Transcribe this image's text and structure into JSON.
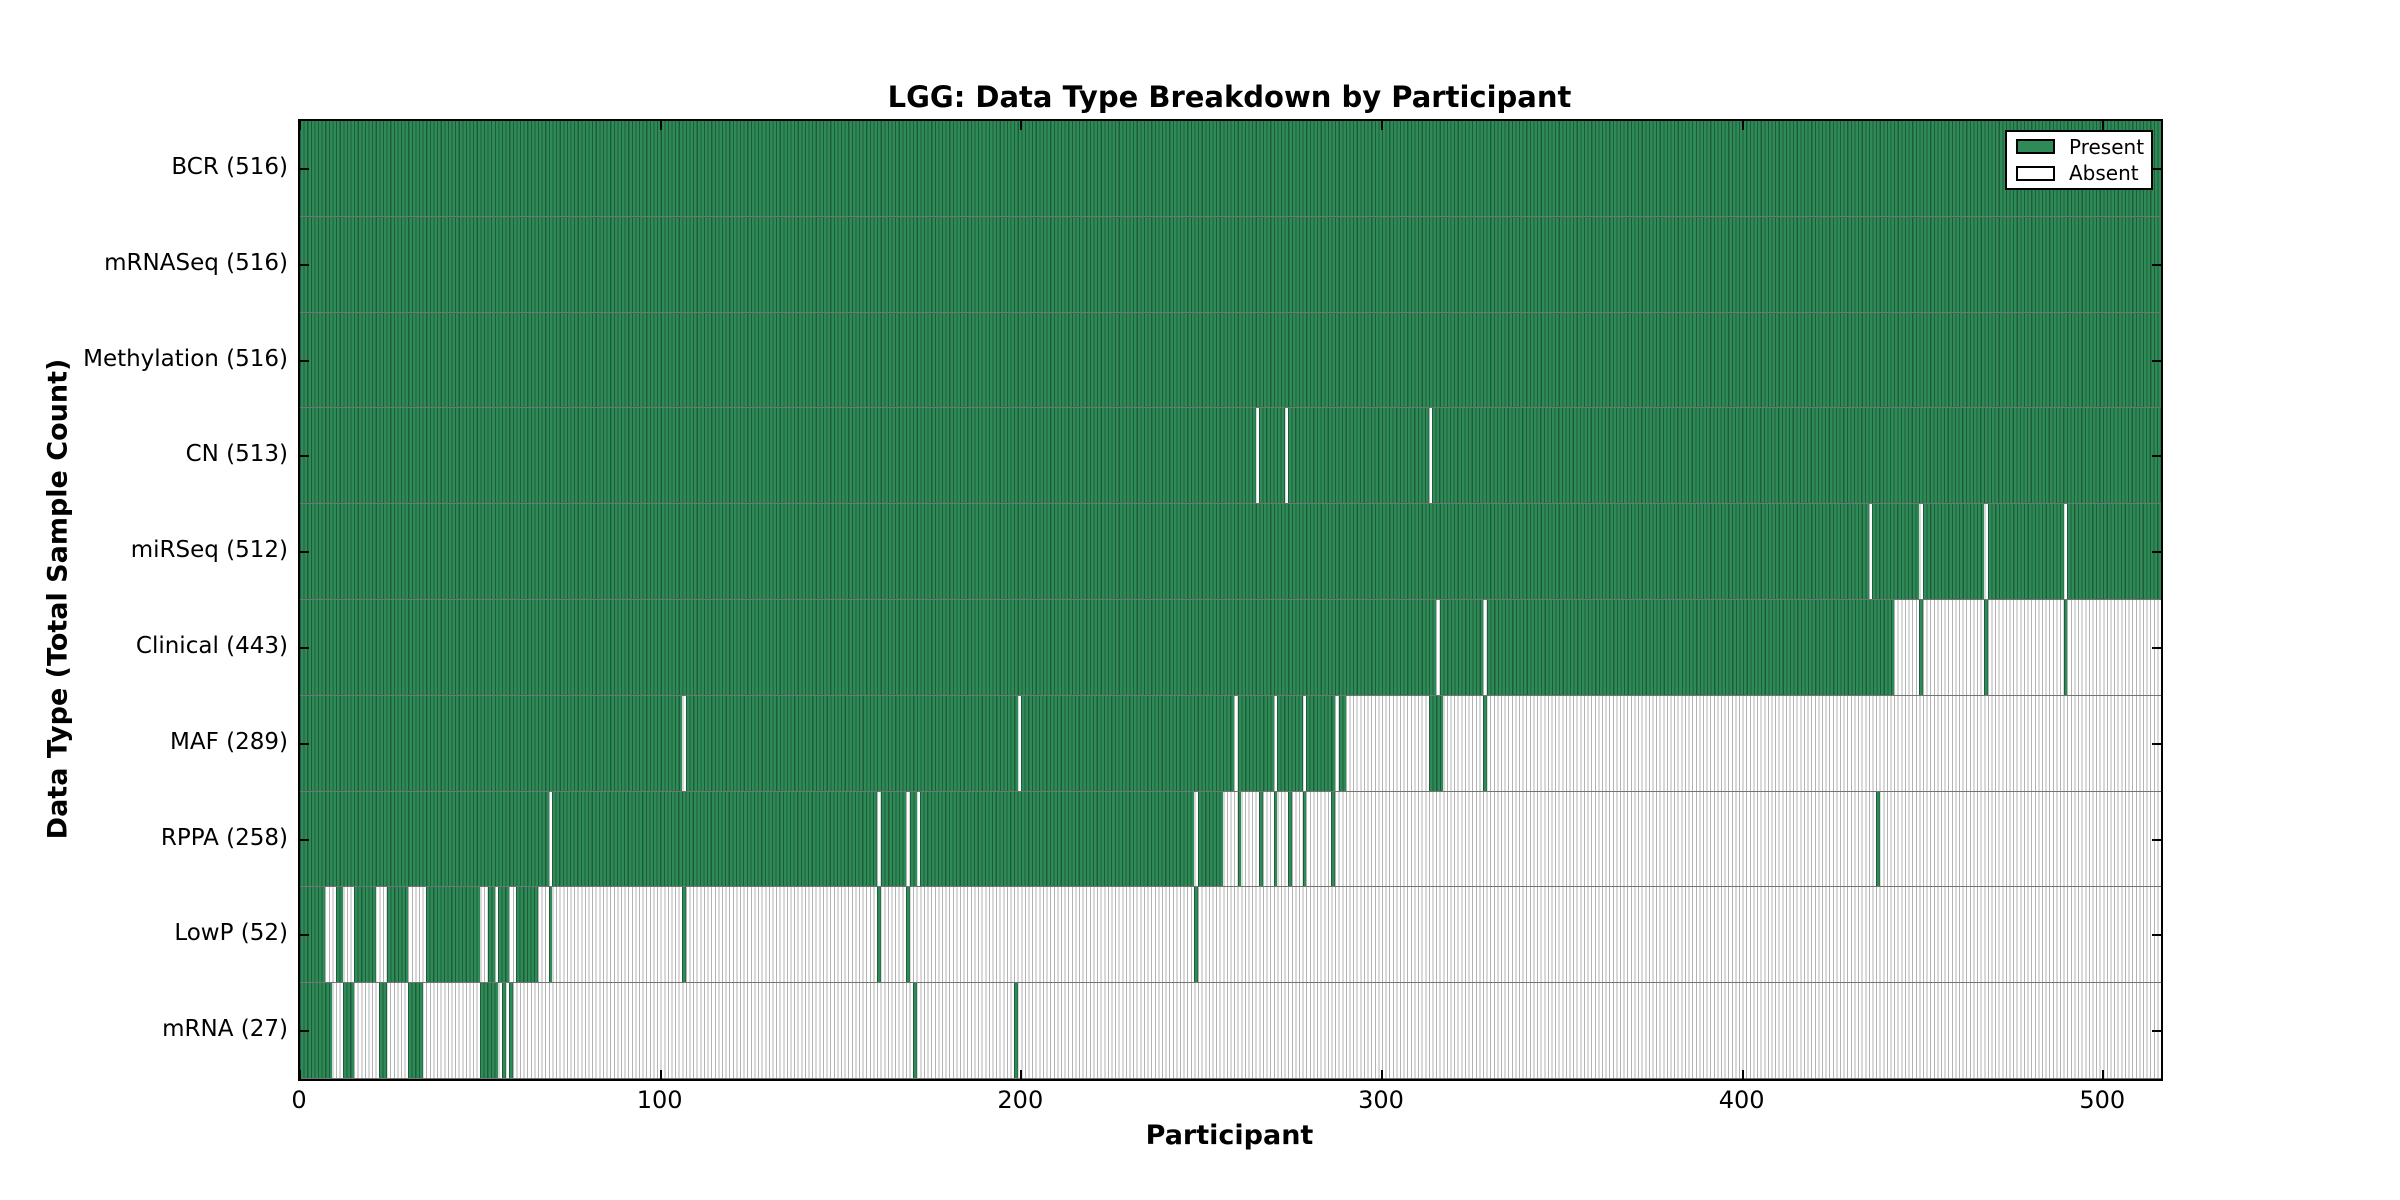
{
  "title": "LGG: Data Type Breakdown by Participant",
  "axes": {
    "xlabel": "Participant",
    "ylabel": "Data Type (Total Sample Count)"
  },
  "legend": {
    "items": [
      {
        "label": "Present",
        "color_key": "present"
      },
      {
        "label": "Absent",
        "color_key": "absent"
      }
    ],
    "position": "upper right"
  },
  "colors": {
    "present": "#2e8b57",
    "present_edge": "#1d5c3a",
    "absent": "#ffffff",
    "absent_edge": "#b3b3b3",
    "frame": "#000000",
    "row_separator": "rgba(0,0,0,0.55)"
  },
  "chart_data": {
    "type": "heatmap",
    "title": "LGG: Data Type Breakdown by Participant",
    "xlabel": "Participant",
    "ylabel": "Data Type (Total Sample Count)",
    "legend": [
      "Present",
      "Absent"
    ],
    "legend_position": "upper right",
    "grid": false,
    "xlim": [
      0,
      516
    ],
    "n_participants": 516,
    "x_ticks": [
      0,
      100,
      200,
      300,
      400,
      500
    ],
    "rows": [
      {
        "name": "bcr",
        "label": "BCR (516)",
        "total": 516,
        "present_intervals": [
          [
            0,
            516
          ]
        ]
      },
      {
        "name": "mrnaseq",
        "label": "mRNASeq (516)",
        "total": 516,
        "present_intervals": [
          [
            0,
            516
          ]
        ]
      },
      {
        "name": "methylation",
        "label": "Methylation (516)",
        "total": 516,
        "present_intervals": [
          [
            0,
            516
          ]
        ]
      },
      {
        "name": "cn",
        "label": "CN (513)",
        "total": 513,
        "present_intervals": [
          [
            0,
            265
          ],
          [
            266,
            273
          ],
          [
            274,
            313
          ],
          [
            314,
            516
          ]
        ]
      },
      {
        "name": "mirseq",
        "label": "miRSeq (512)",
        "total": 512,
        "present_intervals": [
          [
            0,
            435
          ],
          [
            436,
            449
          ],
          [
            450,
            467
          ],
          [
            468,
            489
          ],
          [
            490,
            516
          ]
        ]
      },
      {
        "name": "clinical",
        "label": "Clinical (443)",
        "total": 443,
        "present_intervals": [
          [
            0,
            315
          ],
          [
            316,
            328
          ],
          [
            329,
            442
          ],
          [
            449,
            450
          ],
          [
            467,
            468
          ],
          [
            489,
            490
          ]
        ]
      },
      {
        "name": "maf",
        "label": "MAF (289)",
        "total": 289,
        "present_intervals": [
          [
            0,
            106
          ],
          [
            107,
            199
          ],
          [
            200,
            259
          ],
          [
            260,
            270
          ],
          [
            271,
            278
          ],
          [
            279,
            287
          ],
          [
            288,
            290
          ],
          [
            313,
            317
          ],
          [
            328,
            329
          ]
        ]
      },
      {
        "name": "rppa",
        "label": "RPPA (258)",
        "total": 258,
        "present_intervals": [
          [
            0,
            69
          ],
          [
            70,
            160
          ],
          [
            161,
            168
          ],
          [
            169,
            171
          ],
          [
            172,
            248
          ],
          [
            249,
            256
          ],
          [
            260,
            261
          ],
          [
            266,
            267
          ],
          [
            270,
            271
          ],
          [
            274,
            275
          ],
          [
            278,
            279
          ],
          [
            286,
            287
          ],
          [
            437,
            438
          ]
        ]
      },
      {
        "name": "lowp",
        "label": "LowP (52)",
        "total": 52,
        "present_intervals": [
          [
            0,
            7
          ],
          [
            10,
            12
          ],
          [
            15,
            21
          ],
          [
            24,
            30
          ],
          [
            35,
            50
          ],
          [
            52,
            54
          ],
          [
            55,
            58
          ],
          [
            60,
            66
          ],
          [
            69,
            70
          ],
          [
            106,
            107
          ],
          [
            160,
            161
          ],
          [
            168,
            169
          ],
          [
            248,
            249
          ]
        ]
      },
      {
        "name": "mrna",
        "label": "mRNA (27)",
        "total": 27,
        "present_intervals": [
          [
            0,
            9
          ],
          [
            12,
            15
          ],
          [
            22,
            24
          ],
          [
            30,
            34
          ],
          [
            50,
            55
          ],
          [
            56,
            57
          ],
          [
            58,
            59
          ],
          [
            170,
            171
          ],
          [
            198,
            199
          ]
        ]
      }
    ]
  }
}
